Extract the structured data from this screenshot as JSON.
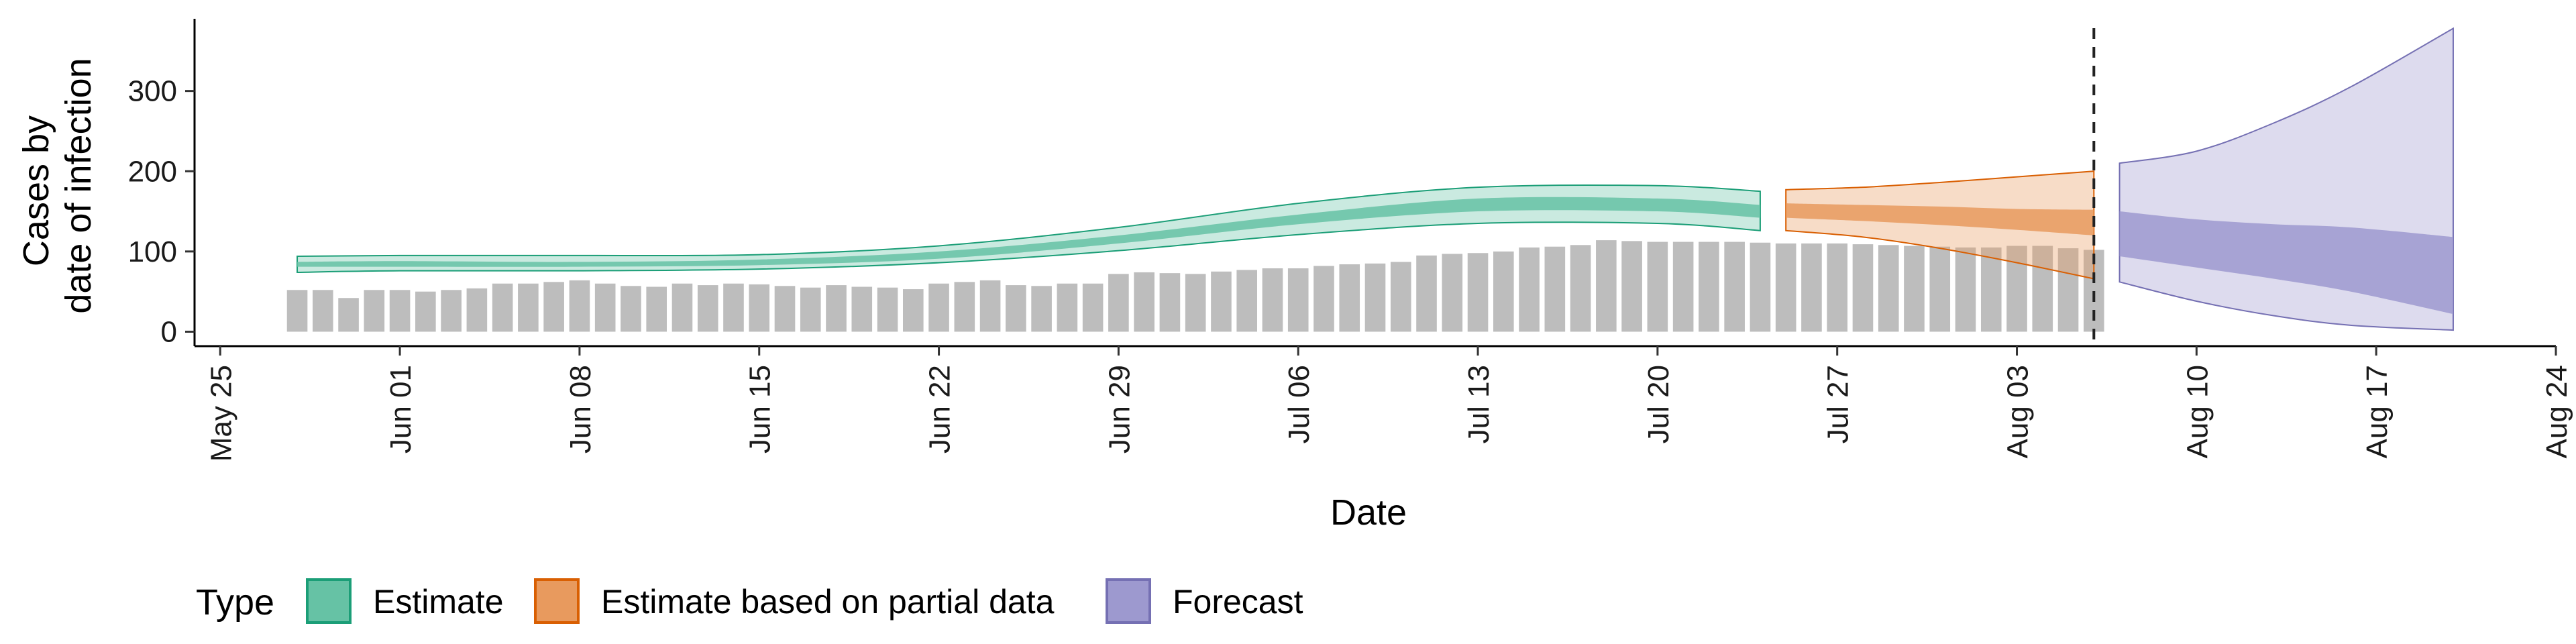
{
  "chart_data": {
    "type": "area",
    "xlabel": "Date",
    "ylabel_lines": [
      "Cases by",
      "date of infection"
    ],
    "x_ticks": [
      {
        "date": "2020-05-25",
        "label": "May 25"
      },
      {
        "date": "2020-06-01",
        "label": "Jun 01"
      },
      {
        "date": "2020-06-08",
        "label": "Jun 08"
      },
      {
        "date": "2020-06-15",
        "label": "Jun 15"
      },
      {
        "date": "2020-06-22",
        "label": "Jun 22"
      },
      {
        "date": "2020-06-29",
        "label": "Jun 29"
      },
      {
        "date": "2020-07-06",
        "label": "Jul 06"
      },
      {
        "date": "2020-07-13",
        "label": "Jul 13"
      },
      {
        "date": "2020-07-20",
        "label": "Jul 20"
      },
      {
        "date": "2020-07-27",
        "label": "Jul 27"
      },
      {
        "date": "2020-08-03",
        "label": "Aug 03"
      },
      {
        "date": "2020-08-10",
        "label": "Aug 10"
      },
      {
        "date": "2020-08-17",
        "label": "Aug 17"
      },
      {
        "date": "2020-08-24",
        "label": "Aug 24"
      }
    ],
    "xlim": [
      "2020-05-24",
      "2020-08-24"
    ],
    "y_ticks": [
      0,
      100,
      200,
      300
    ],
    "ylim": [
      -18,
      390
    ],
    "vline_date": "2020-08-06",
    "reported_cases": {
      "start_date": "2020-05-28",
      "values": [
        52,
        52,
        42,
        52,
        52,
        50,
        52,
        54,
        60,
        60,
        62,
        64,
        60,
        57,
        56,
        60,
        58,
        60,
        59,
        57,
        55,
        58,
        56,
        55,
        53,
        60,
        62,
        64,
        58,
        57,
        60,
        60,
        72,
        74,
        73,
        72,
        75,
        77,
        79,
        79,
        82,
        84,
        85,
        87,
        95,
        97,
        98,
        100,
        105,
        106,
        108,
        114,
        113,
        112,
        112,
        112,
        112,
        111,
        110,
        110,
        110,
        109,
        108,
        107,
        106,
        105,
        105,
        107,
        107,
        104,
        102
      ]
    },
    "series": [
      {
        "name": "Estimate",
        "color": "#1b9e77",
        "fill": "#66c2a5",
        "dates": [
          "2020-05-28",
          "2020-06-01",
          "2020-06-08",
          "2020-06-15",
          "2020-06-22",
          "2020-06-29",
          "2020-07-06",
          "2020-07-13",
          "2020-07-20",
          "2020-07-24"
        ],
        "median": [
          84,
          85,
          84,
          86,
          95,
          115,
          140,
          158,
          158,
          150
        ],
        "lower50": [
          81,
          81,
          81,
          83,
          91,
          110,
          134,
          150,
          150,
          142
        ],
        "upper50": [
          87,
          88,
          87,
          90,
          100,
          120,
          146,
          166,
          166,
          158
        ],
        "lower90": [
          74,
          76,
          76,
          78,
          86,
          101,
          121,
          135,
          135,
          126
        ],
        "upper90": [
          94,
          95,
          95,
          96,
          107,
          130,
          160,
          180,
          182,
          175
        ]
      },
      {
        "name": "Estimate based on partial data",
        "color": "#d95f02",
        "fill": "#e89a5e",
        "dates": [
          "2020-07-25",
          "2020-07-28",
          "2020-07-31",
          "2020-08-03",
          "2020-08-06"
        ],
        "median": [
          150,
          147,
          143,
          138,
          134
        ],
        "lower50": [
          142,
          138,
          133,
          127,
          120
        ],
        "upper50": [
          160,
          158,
          156,
          153,
          152
        ],
        "lower90": [
          126,
          118,
          104,
          86,
          66
        ],
        "upper90": [
          177,
          180,
          186,
          193,
          200
        ]
      },
      {
        "name": "Forecast",
        "color": "#7570b3",
        "fill": "#9d99cf",
        "dates": [
          "2020-08-07",
          "2020-08-10",
          "2020-08-13",
          "2020-08-16",
          "2020-08-20"
        ],
        "median": [
          120,
          115,
          113,
          110,
          105
        ],
        "lower50": [
          94,
          80,
          66,
          50,
          22
        ],
        "upper50": [
          150,
          140,
          134,
          130,
          118
        ],
        "lower90": [
          62,
          38,
          20,
          8,
          2
        ],
        "upper90": [
          210,
          225,
          260,
          305,
          378
        ]
      }
    ],
    "legend": {
      "title": "Type",
      "items": [
        {
          "label": "Estimate",
          "color": "#1b9e77",
          "fill": "#66c2a5"
        },
        {
          "label": "Estimate based on partial data",
          "color": "#d95f02",
          "fill": "#e89a5e"
        },
        {
          "label": "Forecast",
          "color": "#7570b3",
          "fill": "#9d99cf"
        }
      ],
      "placement": "bottom"
    },
    "grid": false
  }
}
